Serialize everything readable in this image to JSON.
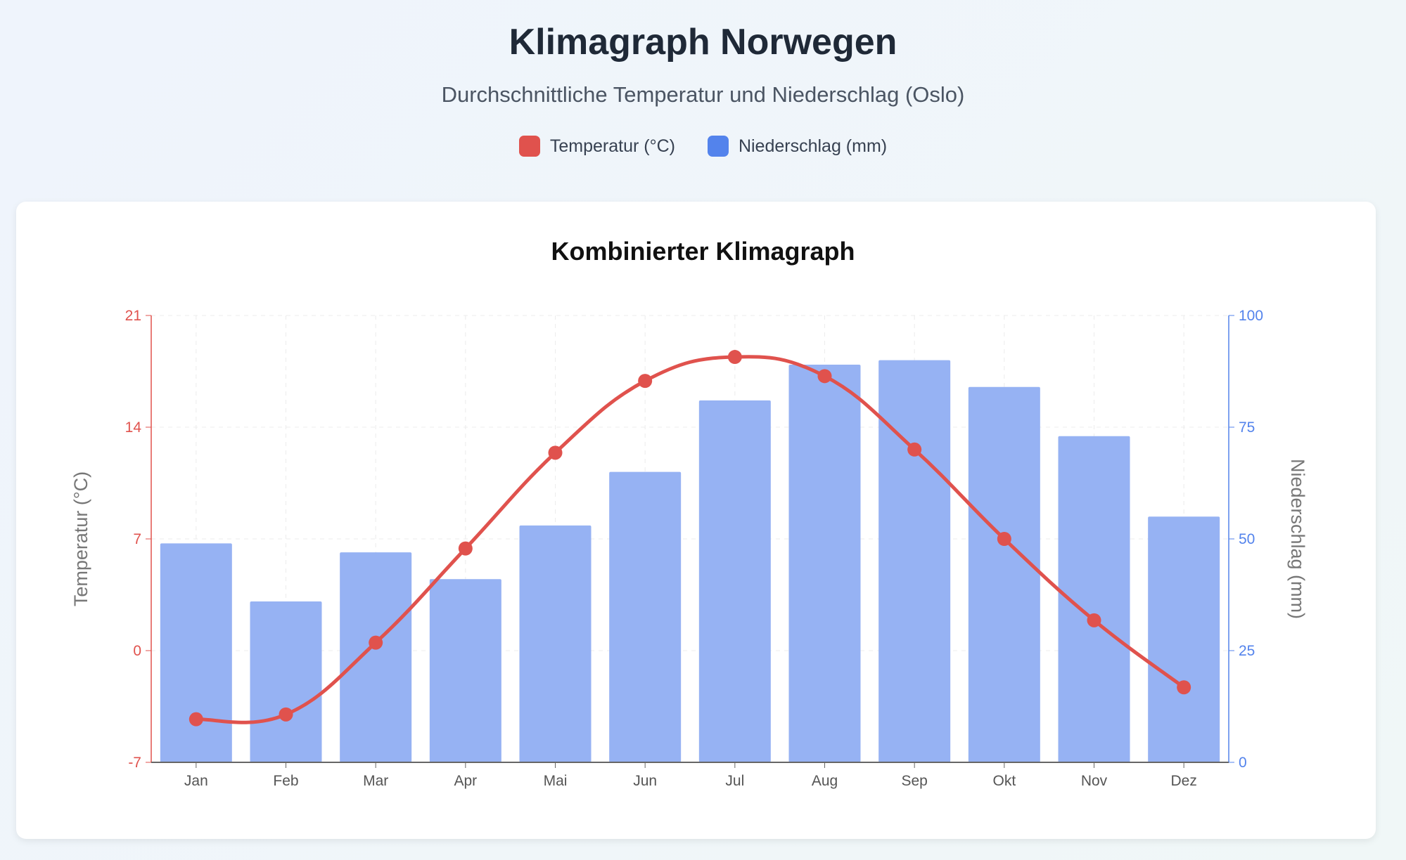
{
  "header": {
    "title": "Klimagraph Norwegen",
    "subtitle": "Durchschnittliche Temperatur und Niederschlag (Oslo)"
  },
  "legend": [
    {
      "label": "Temperatur (°C)",
      "color": "#e0524d"
    },
    {
      "label": "Niederschlag (mm)",
      "color": "#5383ec"
    }
  ],
  "chart_data": {
    "title": "Kombinierter Klimagraph",
    "type": "bar+line",
    "categories": [
      "Jan",
      "Feb",
      "Mar",
      "Apr",
      "Mai",
      "Jun",
      "Jul",
      "Aug",
      "Sep",
      "Okt",
      "Nov",
      "Dez"
    ],
    "series": [
      {
        "name": "Temperatur (°C)",
        "type": "line",
        "axis": "left",
        "color": "#e0524d",
        "values": [
          -4.3,
          -4.0,
          0.5,
          6.4,
          12.4,
          16.9,
          18.4,
          17.2,
          12.6,
          7.0,
          1.9,
          -2.3
        ]
      },
      {
        "name": "Niederschlag (mm)",
        "type": "bar",
        "axis": "right",
        "color": "#96b2f3",
        "values": [
          49,
          36,
          47,
          41,
          53,
          65,
          81,
          89,
          90,
          84,
          73,
          55
        ]
      }
    ],
    "y_left": {
      "label": "Temperatur (°C)",
      "range": [
        -7,
        21
      ],
      "ticks": [
        -7,
        0,
        7,
        14,
        21
      ],
      "color": "#e0524d"
    },
    "y_right": {
      "label": "Niederschlag (mm)",
      "range": [
        0,
        100
      ],
      "ticks": [
        0,
        25,
        50,
        75,
        100
      ],
      "color": "#5383ec"
    },
    "grid": true
  }
}
